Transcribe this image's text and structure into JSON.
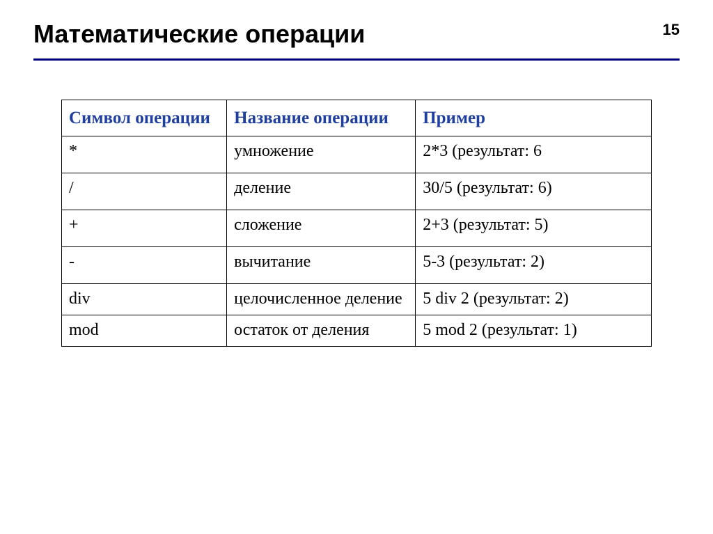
{
  "slide": {
    "title": "Математические операции",
    "page_number": "15",
    "rule_color": "#000080",
    "background_color": "#ffffff"
  },
  "table": {
    "header_color": "#1f3f9e",
    "border_color": "#000000",
    "font_family": "Times New Roman",
    "header_fontsize": 25,
    "cell_fontsize": 24,
    "columns": [
      "Символ операции",
      "Название операции",
      "Пример"
    ],
    "column_widths_pct": [
      28,
      32,
      40
    ],
    "rows": [
      {
        "symbol": "*",
        "name": "умножение",
        "example": "2*3 (результат: 6"
      },
      {
        "symbol": "/",
        "name": "деление",
        "example": "30/5 (результат: 6)"
      },
      {
        "symbol": "+",
        "name": "сложение",
        "example": "2+3 (результат: 5)"
      },
      {
        "symbol": "-",
        "name": "вычитание",
        "example": "5-3 (результат: 2)"
      },
      {
        "symbol": "div",
        "name": "целочисленное деление",
        "example": "5 div 2 (результат: 2)"
      },
      {
        "symbol": "mod",
        "name": "остаток от деления",
        "example": "5 mod 2 (результат: 1)"
      }
    ]
  }
}
